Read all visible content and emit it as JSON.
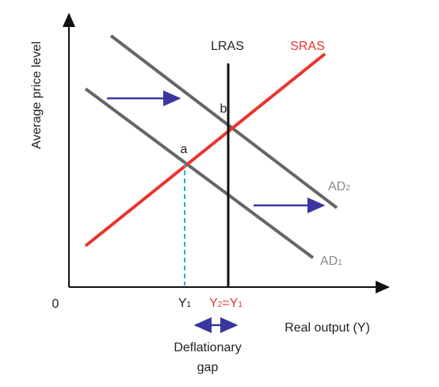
{
  "axes": {
    "y_label": "Average price level",
    "x_label": "Real output (Y)",
    "origin": "0"
  },
  "curves": {
    "lras": "LRAS",
    "sras": "SRAS",
    "ad1": {
      "main": "AD",
      "sub": "1"
    },
    "ad2": {
      "main": "AD",
      "sub": "2"
    }
  },
  "points": {
    "a": "a",
    "b": "b"
  },
  "x_markers": {
    "y1": {
      "main": "Y",
      "sub": "1"
    },
    "y2": {
      "main": "Y",
      "sub": "2",
      "eq": "=",
      "main2": "Y",
      "sub2": "1"
    }
  },
  "gap_label": [
    "Deflationary",
    "gap"
  ]
}
